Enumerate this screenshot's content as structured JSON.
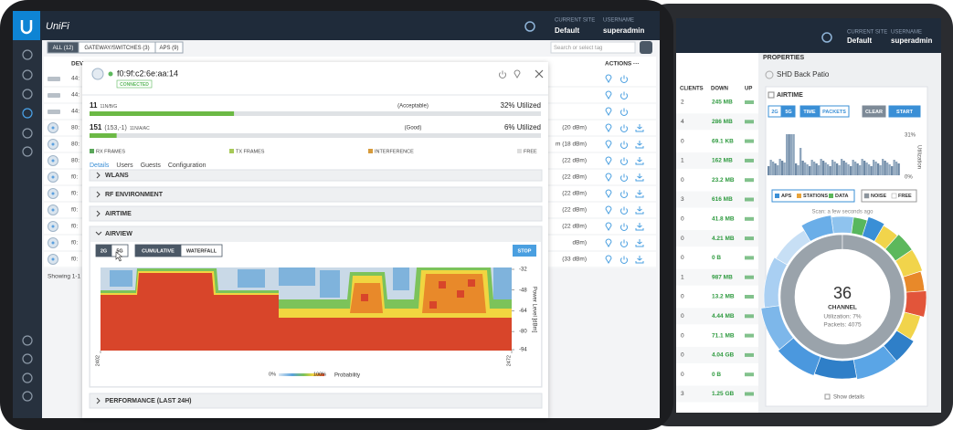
{
  "left_tablet": {
    "brand": "UniFi",
    "header": {
      "site_label": "CURRENT SITE",
      "site": "Default",
      "user_label": "USERNAME",
      "user": "superadmin"
    },
    "filters": [
      "ALL (12)",
      "GATEWAY/SWITCHES (3)",
      "APS (9)"
    ],
    "search_placeholder": "Search or select tag",
    "columns": {
      "device": "DEV",
      "actions": "ACTIONS ···"
    },
    "rows": [
      {
        "name": "44:"
      },
      {
        "name": "44:"
      },
      {
        "name": "44:"
      },
      {
        "name": "80:",
        "power": "(20 dBm)"
      },
      {
        "name": "80:",
        "power": "m (18 dBm)"
      },
      {
        "name": "80:",
        "power": "(22 dBm)"
      },
      {
        "name": "f0:",
        "power": "(22 dBm)"
      },
      {
        "name": "f0:",
        "power": "(22 dBm)"
      },
      {
        "name": "f0:",
        "power": "(22 dBm)"
      },
      {
        "name": "f0:",
        "power": "(22 dBm)"
      },
      {
        "name": "f0:",
        "power": "dBm)"
      },
      {
        "name": "f0:",
        "power": "(33 dBm)"
      }
    ],
    "footer": "Showing 1-1",
    "device_panel": {
      "mac": "f0:9f:c2:6e:aa:14",
      "status": "CONNECTED",
      "radios": [
        {
          "channel": "11",
          "mode": "11N/B/G",
          "quality": "(Acceptable)",
          "utilization": 32,
          "utilization_label": "32% Utilized"
        },
        {
          "channel": "151",
          "channel_detail": "(153,-1)",
          "mode": "11N/A/AC",
          "quality": "(Good)",
          "utilization": 6,
          "utilization_label": "6% Utilized"
        }
      ],
      "legend": [
        "RX FRAMES",
        "TX FRAMES",
        "INTERFERENCE",
        "FREE"
      ],
      "tabs": [
        "Details",
        "Users",
        "Guests",
        "Configuration"
      ],
      "sections": [
        "WLANS",
        "RF ENVIRONMENT",
        "AIRTIME",
        "AIRVIEW",
        "PERFORMANCE (LAST 24H)"
      ],
      "airview": {
        "bands": [
          "2G",
          "5G"
        ],
        "modes": [
          "CUMULATIVE",
          "WATERFALL"
        ],
        "action": "STOP",
        "y_axis_label": "Power Level [dBm]",
        "yticks": [
          -32,
          -48,
          -64,
          -80,
          -94
        ],
        "xticks": [
          2402,
          2472
        ],
        "colorbar_min": "0%",
        "colorbar_max": "100%",
        "colorbar_label": "Probability"
      }
    }
  },
  "right_tablet": {
    "header": {
      "site_label": "CURRENT SITE",
      "site": "Default",
      "user_label": "USERNAME",
      "user": "superadmin"
    },
    "columns": [
      "CLIENTS",
      "DOWN",
      "UP"
    ],
    "rows": [
      {
        "clients": "2",
        "down": "245 MB"
      },
      {
        "clients": "4",
        "down": "286 MB"
      },
      {
        "clients": "0",
        "down": "69.1 KB"
      },
      {
        "clients": "1",
        "down": "162 MB"
      },
      {
        "clients": "0",
        "down": "23.2 MB"
      },
      {
        "clients": "3",
        "down": "616 MB"
      },
      {
        "clients": "0",
        "down": "41.8 MB"
      },
      {
        "clients": "0",
        "down": "4.21 MB"
      },
      {
        "clients": "0",
        "down": "0 B"
      },
      {
        "clients": "1",
        "down": "987 MB"
      },
      {
        "clients": "0",
        "down": "13.2 MB"
      },
      {
        "clients": "0",
        "down": "4.44 MB"
      },
      {
        "clients": "0",
        "down": "71.1 MB"
      },
      {
        "clients": "0",
        "down": "4.04 GB"
      },
      {
        "clients": "0",
        "down": "0 B"
      },
      {
        "clients": "3",
        "down": "1.25 GB"
      }
    ],
    "properties": {
      "title": "PROPERTIES",
      "device": "SHD Back Patio",
      "section": "AIRTIME",
      "bands": [
        "2G",
        "5G"
      ],
      "metrics": [
        "TIME",
        "PACKETS"
      ],
      "actions": [
        "CLEAR",
        "START"
      ],
      "y_max_label": "31%",
      "y_min_label": "0%",
      "y_axis_label": "Utilization",
      "legend_left": [
        "APS",
        "STATIONS",
        "DATA"
      ],
      "legend_right": [
        "NOISE",
        "FREE"
      ],
      "scan": "Scan: a few seconds ago",
      "channel": 36,
      "channel_label": "CHANNEL",
      "utilization": "Utilization: 7%",
      "packets": "Packets: 4075",
      "show_details": "Show details"
    }
  }
}
